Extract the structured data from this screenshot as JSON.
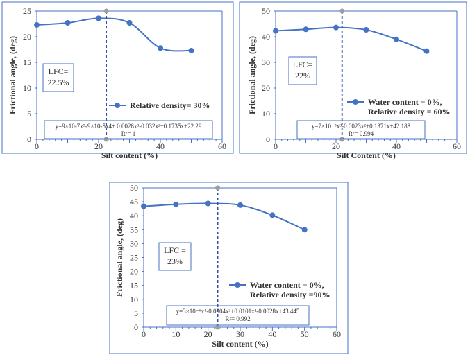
{
  "chart_data": [
    {
      "type": "line",
      "xlabel": "Silt content  (%)",
      "ylabel": "Frictional  angle, (deg)",
      "xlim": [
        0,
        60
      ],
      "ylim": [
        0,
        25
      ],
      "xticks": [
        0,
        20,
        40,
        60
      ],
      "yticks": [
        0,
        5,
        10,
        15,
        20,
        25
      ],
      "x": [
        0,
        10,
        20,
        30,
        40,
        50
      ],
      "series": [
        {
          "name": "Relative density= 30%",
          "values": [
            22.3,
            22.7,
            23.6,
            22.7,
            17.8,
            17.3
          ]
        }
      ],
      "lfc_x": 22.5,
      "lfc_label": [
        "LFC=",
        "22.5%"
      ],
      "legend": [
        "Relative density= 30%"
      ],
      "equation": "y=9×10-7x⁵-9×10-5x4+ 0.0028x³-0.032x²+0.1735x+22.29",
      "r2": "R²= 1",
      "color": "#4472c4",
      "marker_color": "#9e9e9e"
    },
    {
      "type": "line",
      "xlabel": "Silt Content  (%)",
      "ylabel": "Frictional  angle, (deg)",
      "xlim": [
        0,
        60
      ],
      "ylim": [
        0,
        50
      ],
      "xticks": [
        0,
        20,
        40,
        60
      ],
      "yticks": [
        0,
        10,
        20,
        30,
        40,
        50
      ],
      "x": [
        0,
        10,
        20,
        30,
        40,
        50
      ],
      "series": [
        {
          "name": "Water content = 0%, Relative density = 60%",
          "values": [
            42.3,
            42.9,
            43.6,
            42.7,
            39.0,
            34.4
          ]
        }
      ],
      "lfc_x": 22,
      "lfc_label": [
        "LFC=",
        "22%"
      ],
      "legend": [
        "Water content = 0%,",
        "Relative density = 60%"
      ],
      "equation": "y=7×10⁻⁵x³-0.0023x²+0.1371x+42.188",
      "r2": "R²= 0.994",
      "color": "#4472c4"
    },
    {
      "type": "line",
      "xlabel": "Silt content  (%)",
      "ylabel": "Frictional  angle, (deg)",
      "xlim": [
        0,
        60
      ],
      "ylim": [
        0,
        50
      ],
      "xticks": [
        0,
        10,
        20,
        30,
        40,
        50,
        60
      ],
      "yticks": [
        0,
        5,
        10,
        15,
        20,
        25,
        30,
        35,
        40,
        45,
        50
      ],
      "x": [
        0,
        10,
        20,
        30,
        40,
        50
      ],
      "series": [
        {
          "name": "Water content = 0%, Relative density =90%",
          "values": [
            43.4,
            44.1,
            44.4,
            43.8,
            40.2,
            35.0
          ]
        }
      ],
      "lfc_x": 23,
      "lfc_label": [
        "LFC  =",
        "23%"
      ],
      "legend": [
        "Water content = 0%,",
        "Relative density =90%"
      ],
      "equation": "y=3×10⁻⁶x⁴-0.0004x³+0.0101x²-0.0028x+43.445",
      "r2": "R²= 0.992",
      "color": "#4472c4"
    }
  ]
}
